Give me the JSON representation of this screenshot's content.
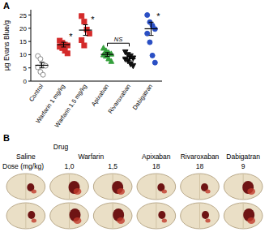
{
  "chart_data": {
    "type": "dot",
    "y_label": "µg Evans Blue/g",
    "categories": [
      "Control",
      "Warfarin 1 mg/kg",
      "Warfarin 1.5 mg/kg",
      "Apixaban",
      "Rivaroxaban",
      "Dabigatran"
    ],
    "points": [
      [
        9.5,
        8.4,
        6.4,
        5.8,
        5.2,
        3.5,
        2.4
      ],
      [
        15.3,
        14.5,
        13.8,
        13.5,
        13.0,
        12.5,
        11.5,
        10.5
      ],
      [
        24.6,
        22.5,
        19.5,
        18.0,
        15.5,
        13.5
      ],
      [
        12.5,
        11.5,
        10.8,
        10.3,
        10.0,
        9.5,
        8.5,
        7.5
      ],
      [
        11.0,
        10.0,
        9.5,
        8.7,
        8.3,
        7.6,
        6.5,
        5.8
      ],
      [
        25.0,
        22.3,
        21.0,
        19.7,
        18.0,
        14.7,
        9.7,
        7.0
      ]
    ],
    "mean": [
      6.0,
      13.8,
      19.3,
      10.1,
      8.5,
      19.8
    ],
    "sem": [
      1.0,
      0.9,
      2.0,
      0.7,
      0.8,
      2.5
    ],
    "colors": [
      "#8c8c8c",
      "#d42a2a",
      "#d42a2a",
      "#35a03c",
      "#111111",
      "#2a4fc4"
    ],
    "markers": [
      "circle-open",
      "square",
      "square",
      "triangle",
      "triangle-down",
      "circle"
    ],
    "annotations": [
      null,
      "*",
      "*",
      null,
      null,
      "*"
    ],
    "brackets": [
      {
        "from": 3,
        "to": 4,
        "label": "NS"
      }
    ],
    "ylim": [
      0,
      27
    ],
    "yticks": [
      0,
      5,
      10,
      15,
      20,
      25
    ],
    "grid": false
  },
  "panel_labels": [
    "A",
    "B"
  ],
  "panel_b": {
    "drug_label": "Drug",
    "dose_label": "Dose (mg/kg)",
    "groups": [
      {
        "drug": "Saline",
        "doses": []
      },
      {
        "drug": "Warfarin",
        "doses": [
          "1,0",
          "1,5"
        ]
      },
      {
        "drug": "Apixaban",
        "doses": [
          "18"
        ]
      },
      {
        "drug": "Rivaroxaban",
        "doses": [
          "18"
        ]
      },
      {
        "drug": "Dabigatran",
        "doses": [
          "9"
        ]
      }
    ]
  }
}
